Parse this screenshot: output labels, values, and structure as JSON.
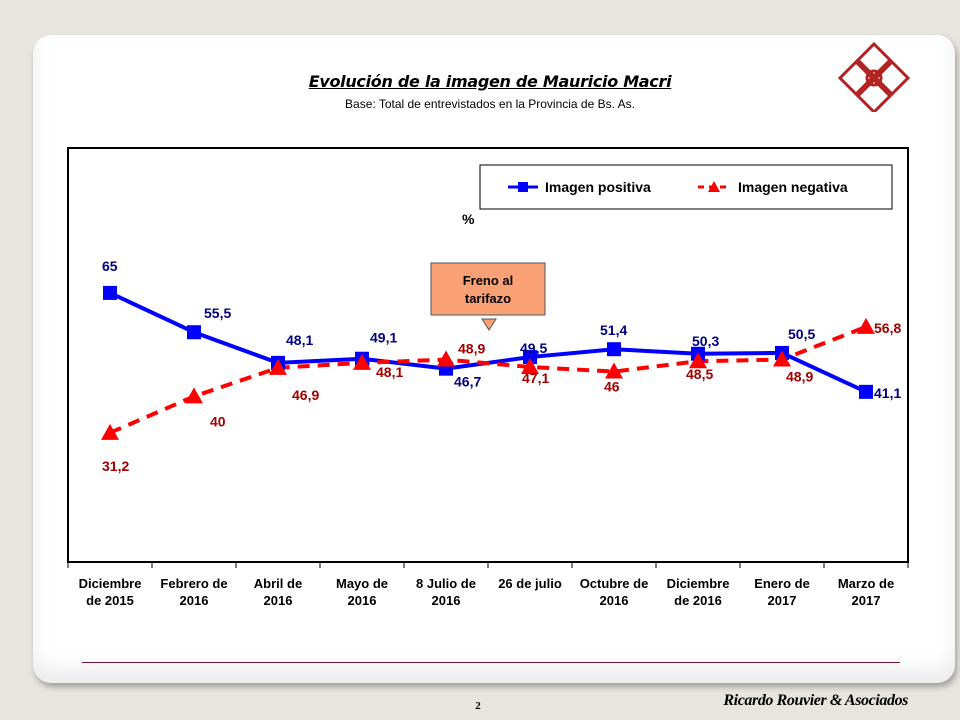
{
  "slide": {
    "page_number": "2",
    "brand": "Ricardo Rouvier & Asociados",
    "logo_icon": "red-diamond-grid-logo",
    "accent_color": "#b22222"
  },
  "chart_data": {
    "type": "line",
    "title": "Evolución de la imagen de Mauricio Macri",
    "subtitle": "Base: Total de entrevistados en la Provincia de Bs. As.",
    "ylabel": "%",
    "xlabel": "",
    "ylim": [
      0,
      100
    ],
    "grid": false,
    "legend_position": "top-right",
    "categories": [
      [
        "Diciembre",
        "de 2015"
      ],
      [
        "Febrero de",
        "2016"
      ],
      [
        "Abril de",
        "2016"
      ],
      [
        "Mayo de",
        "2016"
      ],
      [
        "8 Julio de",
        "2016"
      ],
      [
        "26 de julio"
      ],
      [
        "Octubre de",
        "2016"
      ],
      [
        "Diciembre",
        "de 2016"
      ],
      [
        "Enero de",
        "2017"
      ],
      [
        "Marzo de",
        "2017"
      ]
    ],
    "series": [
      {
        "name": "Imagen positiva",
        "color": "#0000ff",
        "label_color": "#000080",
        "marker": "square",
        "line_style": "solid",
        "values": [
          65,
          55.5,
          48.1,
          49.1,
          46.7,
          49.5,
          51.4,
          50.3,
          50.5,
          41.1
        ],
        "labels": [
          "65",
          "55,5",
          "48,1",
          "49,1",
          "46,7",
          "49,5",
          "51,4",
          "50,3",
          "50,5",
          "41,1"
        ]
      },
      {
        "name": "Imagen negativa",
        "color": "#ff0000",
        "label_color": "#a00000",
        "marker": "triangle",
        "line_style": "dashed",
        "values": [
          31.2,
          40,
          46.9,
          48.1,
          48.9,
          47.1,
          46,
          48.5,
          48.9,
          56.8
        ],
        "labels": [
          "31,2",
          "40",
          "46,9",
          "48,1",
          "48,9",
          "47,1",
          "46",
          "48,5",
          "48,9",
          "56,8"
        ]
      }
    ],
    "annotations": [
      {
        "text": [
          "Freno al",
          "tarifazo"
        ],
        "between_categories": [
          4,
          5
        ],
        "fill": "#f9a074"
      }
    ]
  }
}
